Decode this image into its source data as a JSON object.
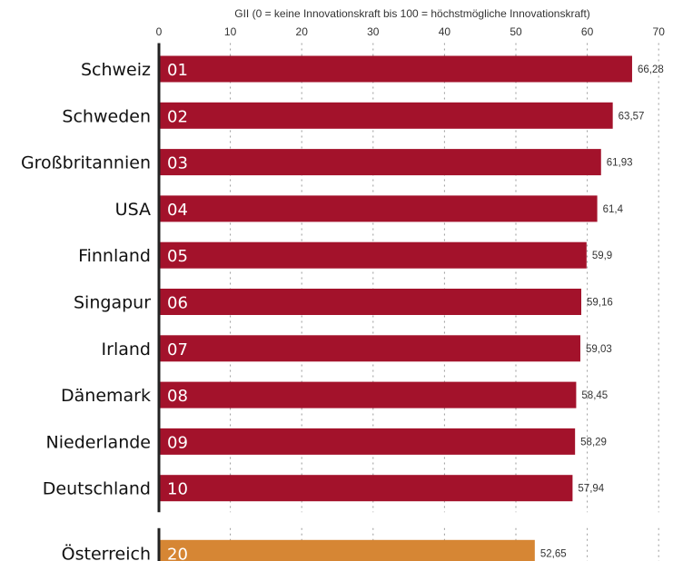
{
  "chart_data": {
    "type": "bar",
    "orientation": "horizontal",
    "xlabel": "GII (0 = keine Innovationskraft bis 100 = höchstmögliche Innovationskraft)",
    "xlim": [
      0,
      70
    ],
    "xticks": [
      "0",
      "10",
      "20",
      "30",
      "40",
      "50",
      "60",
      "70"
    ],
    "grid": true,
    "colors": {
      "primary": "#A3122B",
      "highlight": "#D68634",
      "text": "#111111"
    },
    "categories": [
      "Schweiz",
      "Schweden",
      "Großbritannien",
      "USA",
      "Finnland",
      "Singapur",
      "Irland",
      "Dänemark",
      "Niederlande",
      "Deutschland",
      "Österreich"
    ],
    "ranks": [
      "01",
      "02",
      "03",
      "04",
      "05",
      "06",
      "07",
      "08",
      "09",
      "10",
      "20"
    ],
    "values": [
      66.28,
      63.57,
      61.93,
      61.4,
      59.9,
      59.16,
      59.03,
      58.45,
      58.29,
      57.94,
      52.65
    ],
    "value_labels": [
      "66,28",
      "63,57",
      "61,93",
      "61,4",
      "59,9",
      "59,16",
      "59,03",
      "58,45",
      "58,29",
      "57,94",
      "52,65"
    ],
    "highlighted_category": "Österreich"
  }
}
